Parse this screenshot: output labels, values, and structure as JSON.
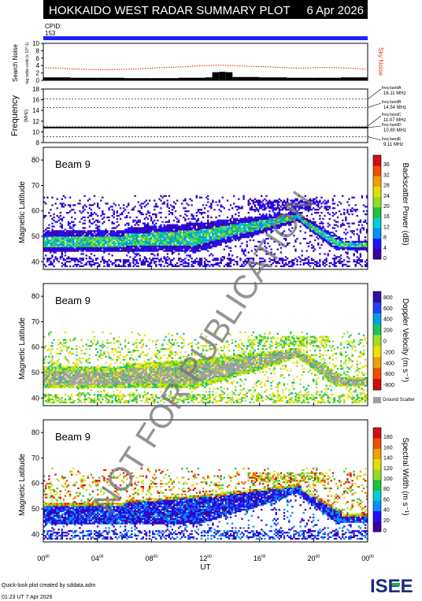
{
  "header": {
    "title": "HOKKAIDO WEST RADAR SUMMARY PLOT",
    "date": "6 Apr 2026",
    "cpid_label": "CPID:",
    "cpid_value": "153"
  },
  "colors": {
    "title_bg": "#000000",
    "title_fg": "#ffffff",
    "cpid_bar": "#2020ff",
    "sky_noise": "#e04010",
    "search_noise": "#000000",
    "ground_scatter": "#a0a0a0",
    "watermark": "#707070"
  },
  "watermark": "NOT FOR PUBLICATION",
  "footer": {
    "created_by": "Quick-look plot created by sddata.adm",
    "timestamp": "01:23 UT 7 Apr 2026",
    "logo_text": "ISEE"
  },
  "chart_data": [
    {
      "type": "line",
      "panel": "noise",
      "ylabel": "Search Noise",
      "yunit": "log.radar-units (x 10^-1)",
      "right_label": "Sky Noise",
      "xlim": [
        0,
        24
      ],
      "ylim": [
        0,
        10
      ],
      "yticks": [
        0,
        2,
        4,
        6,
        8,
        10
      ],
      "series": [
        {
          "name": "Sky Noise",
          "x": [
            0,
            1,
            2,
            3,
            4,
            5,
            6,
            7,
            8,
            9,
            10,
            11,
            12,
            13,
            14,
            15,
            16,
            17,
            18,
            19,
            20,
            21,
            22,
            23,
            24
          ],
          "values": [
            3.4,
            3.3,
            3.1,
            3.0,
            2.9,
            2.9,
            3.0,
            3.1,
            3.3,
            3.5,
            3.6,
            3.8,
            4.0,
            4.1,
            4.0,
            3.8,
            3.7,
            3.6,
            3.4,
            3.3,
            3.4,
            3.5,
            3.4,
            3.2,
            3.0
          ]
        },
        {
          "name": "Search Noise",
          "x": [
            0,
            2,
            4,
            6,
            8,
            10,
            12,
            12.5,
            13,
            13.5,
            14,
            16,
            18,
            20,
            22,
            24
          ],
          "values": [
            0.8,
            0.7,
            0.7,
            0.6,
            0.6,
            0.7,
            0.8,
            2.2,
            2.3,
            2.2,
            0.9,
            0.8,
            0.7,
            0.7,
            0.8,
            0.7
          ]
        }
      ]
    },
    {
      "type": "line",
      "panel": "frequency",
      "ylabel": "Frequency",
      "yunit": "(MHz)",
      "xlim": [
        0,
        24
      ],
      "ylim": [
        8,
        18
      ],
      "yticks": [
        8,
        10,
        12,
        14,
        16,
        18
      ],
      "bands": [
        {
          "name": "freq bandA",
          "value": "16.11 MHz",
          "freq": 16.11
        },
        {
          "name": "freq bandB",
          "value": "14.54 MHz",
          "freq": 14.54
        },
        {
          "name": "freq bandC",
          "value": "11.07 MHz",
          "freq": 11.07
        },
        {
          "name": "freq bandD",
          "value": "10.80 MHz",
          "freq": 10.8
        },
        {
          "name": "freq bandE",
          "value": "9.11 MHz",
          "freq": 9.11
        }
      ],
      "operating_freq": 10.8
    },
    {
      "type": "heatmap",
      "panel": "power",
      "beam_label": "Beam  9",
      "ylabel": "Magnetic Latitude",
      "colorbar_label": "Backscatter Power (dB)",
      "xlim": [
        0,
        24
      ],
      "ylim": [
        37,
        85
      ],
      "yticks": [
        40,
        50,
        60,
        70,
        80
      ],
      "cbar_ticks": [
        "0",
        "4",
        "8",
        "12",
        "16",
        "20",
        "24",
        "28",
        "32",
        "36"
      ],
      "cbar_colors": [
        "#3a00a0",
        "#2010ff",
        "#0090ff",
        "#00d0d0",
        "#20c040",
        "#90e020",
        "#e0e000",
        "#f0a000",
        "#f05000",
        "#d01010"
      ]
    },
    {
      "type": "heatmap",
      "panel": "velocity",
      "beam_label": "Beam  9",
      "ylabel": "Magnetic Latitude",
      "colorbar_label": "Doppler Velocity (m s⁻¹)",
      "xlim": [
        0,
        24
      ],
      "ylim": [
        37,
        85
      ],
      "yticks": [
        40,
        50,
        60,
        70,
        80
      ],
      "cbar_ticks": [
        "800",
        "600",
        "400",
        "200",
        "0",
        "-200",
        "-400",
        "-600",
        "-800"
      ],
      "cbar_colors": [
        "#3010a0",
        "#2040ff",
        "#00a0e0",
        "#20c060",
        "#a0e020",
        "#f0e000",
        "#f0a000",
        "#f05000",
        "#d01010"
      ],
      "ground_label": "Ground Scatter"
    },
    {
      "type": "heatmap",
      "panel": "width",
      "beam_label": "Beam  9",
      "ylabel": "Magnetic Latitude",
      "colorbar_label": "Spectral Width (m s⁻¹)",
      "xlim": [
        0,
        24
      ],
      "ylim": [
        37,
        85
      ],
      "yticks": [
        40,
        50,
        60,
        70,
        80
      ],
      "cbar_ticks": [
        "0",
        "20",
        "40",
        "60",
        "80",
        "100",
        "120",
        "140",
        "160",
        "180"
      ],
      "cbar_colors": [
        "#3a00a0",
        "#2010ff",
        "#0090ff",
        "#00d0d0",
        "#20c040",
        "#90e020",
        "#e0e000",
        "#f0a000",
        "#f05000",
        "#d01010"
      ]
    }
  ],
  "xaxis": {
    "label": "UT",
    "ticks": [
      "00",
      "04",
      "08",
      "12",
      "16",
      "20",
      "00"
    ],
    "tick_sup": "00",
    "tick_hours": [
      0,
      4,
      8,
      12,
      16,
      20,
      24
    ]
  }
}
